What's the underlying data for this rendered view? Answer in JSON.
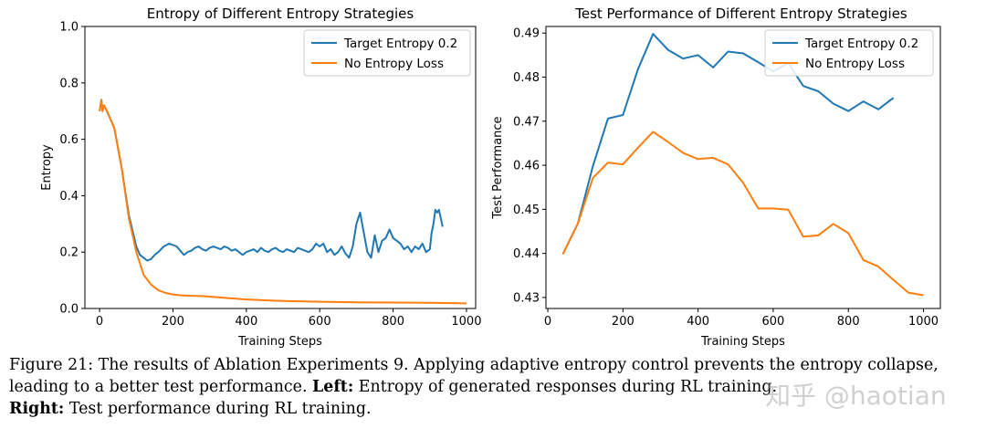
{
  "chart_data": [
    {
      "type": "line",
      "title": "Entropy of Different Entropy Strategies",
      "xlabel": "Training Steps",
      "ylabel": "Entropy",
      "xlim": [
        -40,
        1025
      ],
      "ylim": [
        0.0,
        1.0
      ],
      "xticks": [
        0,
        200,
        400,
        600,
        800,
        1000
      ],
      "yticks": [
        0.0,
        0.2,
        0.4,
        0.6,
        0.8,
        1.0
      ],
      "legend_position": "top-right",
      "grid": false,
      "series": [
        {
          "name": "Target Entropy 0.2",
          "color": "#1f77b4",
          "x": [
            0,
            5,
            8,
            12,
            20,
            40,
            60,
            80,
            100,
            110,
            120,
            130,
            140,
            150,
            160,
            175,
            190,
            200,
            210,
            220,
            230,
            240,
            250,
            260,
            270,
            280,
            290,
            300,
            310,
            320,
            330,
            340,
            350,
            360,
            370,
            380,
            390,
            400,
            410,
            420,
            430,
            440,
            450,
            460,
            470,
            480,
            490,
            500,
            510,
            520,
            530,
            540,
            550,
            560,
            570,
            580,
            590,
            600,
            610,
            620,
            630,
            640,
            650,
            660,
            670,
            680,
            690,
            700,
            710,
            720,
            730,
            740,
            750,
            760,
            770,
            780,
            790,
            800,
            810,
            820,
            830,
            840,
            850,
            860,
            870,
            880,
            890,
            900,
            905,
            910,
            915,
            920,
            925,
            930,
            935
          ],
          "y": [
            0.7,
            0.74,
            0.7,
            0.72,
            0.7,
            0.64,
            0.5,
            0.33,
            0.22,
            0.19,
            0.18,
            0.17,
            0.175,
            0.19,
            0.2,
            0.22,
            0.23,
            0.225,
            0.22,
            0.205,
            0.19,
            0.2,
            0.205,
            0.215,
            0.22,
            0.21,
            0.205,
            0.215,
            0.22,
            0.215,
            0.21,
            0.22,
            0.215,
            0.205,
            0.21,
            0.2,
            0.19,
            0.2,
            0.205,
            0.21,
            0.2,
            0.215,
            0.205,
            0.2,
            0.21,
            0.215,
            0.205,
            0.2,
            0.21,
            0.205,
            0.2,
            0.215,
            0.21,
            0.205,
            0.2,
            0.21,
            0.23,
            0.22,
            0.23,
            0.2,
            0.21,
            0.19,
            0.2,
            0.22,
            0.195,
            0.18,
            0.22,
            0.3,
            0.34,
            0.27,
            0.2,
            0.18,
            0.26,
            0.2,
            0.24,
            0.25,
            0.28,
            0.25,
            0.24,
            0.23,
            0.21,
            0.22,
            0.2,
            0.22,
            0.21,
            0.23,
            0.2,
            0.21,
            0.27,
            0.3,
            0.35,
            0.34,
            0.35,
            0.32,
            0.29
          ]
        },
        {
          "name": "No Entropy Loss",
          "color": "#ff7f0e",
          "x": [
            0,
            5,
            8,
            12,
            20,
            40,
            60,
            80,
            100,
            120,
            140,
            160,
            180,
            200,
            220,
            250,
            280,
            300,
            320,
            350,
            400,
            450,
            500,
            600,
            700,
            800,
            900,
            1000
          ],
          "y": [
            0.7,
            0.74,
            0.7,
            0.72,
            0.7,
            0.64,
            0.5,
            0.32,
            0.2,
            0.12,
            0.085,
            0.065,
            0.055,
            0.05,
            0.047,
            0.045,
            0.044,
            0.042,
            0.04,
            0.037,
            0.032,
            0.029,
            0.027,
            0.024,
            0.022,
            0.021,
            0.02,
            0.018
          ]
        }
      ]
    },
    {
      "type": "line",
      "title": "Test Performance of Different Entropy Strategies",
      "xlabel": "Training Steps",
      "ylabel": "Test Performance",
      "xlim": [
        -5,
        1045
      ],
      "ylim": [
        0.4275,
        0.4915
      ],
      "xticks": [
        0,
        200,
        400,
        600,
        800,
        1000
      ],
      "yticks": [
        0.43,
        0.44,
        0.45,
        0.46,
        0.47,
        0.48,
        0.49
      ],
      "legend_position": "top-right",
      "grid": false,
      "series": [
        {
          "name": "Target Entropy 0.2",
          "color": "#1f77b4",
          "x": [
            40,
            80,
            120,
            160,
            200,
            240,
            280,
            320,
            360,
            400,
            440,
            480,
            520,
            560,
            600,
            640,
            680,
            720,
            760,
            800,
            840,
            880,
            920
          ],
          "y": [
            0.4398,
            0.4468,
            0.4598,
            0.4706,
            0.4714,
            0.4818,
            0.4898,
            0.4862,
            0.4842,
            0.485,
            0.4822,
            0.4858,
            0.4854,
            0.4834,
            0.4813,
            0.4832,
            0.478,
            0.4768,
            0.474,
            0.4723,
            0.4745,
            0.4727,
            0.4753
          ]
        },
        {
          "name": "No Entropy Loss",
          "color": "#ff7f0e",
          "x": [
            40,
            80,
            120,
            160,
            200,
            240,
            280,
            320,
            360,
            400,
            440,
            480,
            520,
            560,
            600,
            640,
            680,
            720,
            760,
            800,
            840,
            880,
            920,
            960,
            1000
          ],
          "y": [
            0.4398,
            0.4468,
            0.4571,
            0.4606,
            0.4602,
            0.464,
            0.4676,
            0.4653,
            0.4628,
            0.4614,
            0.4617,
            0.4602,
            0.456,
            0.4502,
            0.4502,
            0.4499,
            0.4438,
            0.4441,
            0.4467,
            0.4446,
            0.4385,
            0.437,
            0.434,
            0.4311,
            0.4305
          ]
        }
      ]
    }
  ],
  "caption": {
    "part1": "Figure 21: The results of Ablation Experiments 9. Applying adaptive entropy control prevents the entropy collapse, leading to a better test performance.",
    "left_label": "Left:",
    "left_text": "Entropy of generated responses during RL training.",
    "right_label": "Right:",
    "right_text": "Test performance during RL training."
  },
  "watermark": "知乎 @haotian"
}
